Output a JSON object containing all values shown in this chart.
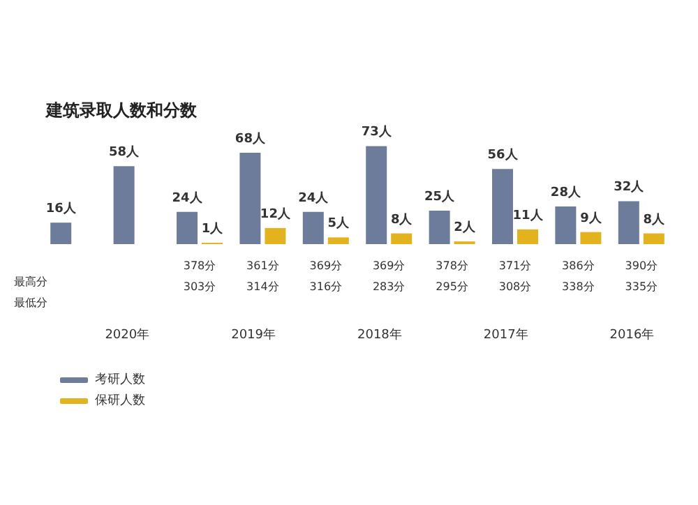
{
  "chart_data": {
    "type": "bar",
    "title": "建筑录取人数和分数",
    "categories": [
      null,
      null,
      "378分\n303分",
      "361分\n314分",
      "369分\n316分",
      "369分\n283分",
      "378分\n295分",
      "371分\n308分",
      "386分\n338分",
      "390分\n335分"
    ],
    "series": [
      {
        "name": "考研人数",
        "color": "#6e7c9b",
        "values": [
          16,
          58,
          24,
          68,
          24,
          73,
          25,
          56,
          28,
          32
        ],
        "value_labels": [
          "16人",
          "58人",
          "24人",
          "68人",
          "24人",
          "73人",
          "25人",
          "56人",
          "28人",
          "32人"
        ]
      },
      {
        "name": "保研人数",
        "color": "#e3b21f",
        "values": [
          null,
          null,
          1,
          12,
          5,
          8,
          2,
          11,
          9,
          8
        ],
        "value_labels": [
          null,
          null,
          "1人",
          "12人",
          "5人",
          "8人",
          "2人",
          "11人",
          "9人",
          "8人"
        ]
      }
    ],
    "annotations": [
      "2020年",
      "2019年",
      "2018年",
      "2017年",
      "2016年",
      "最高分",
      "最低分"
    ],
    "legend": "bottom left"
  }
}
